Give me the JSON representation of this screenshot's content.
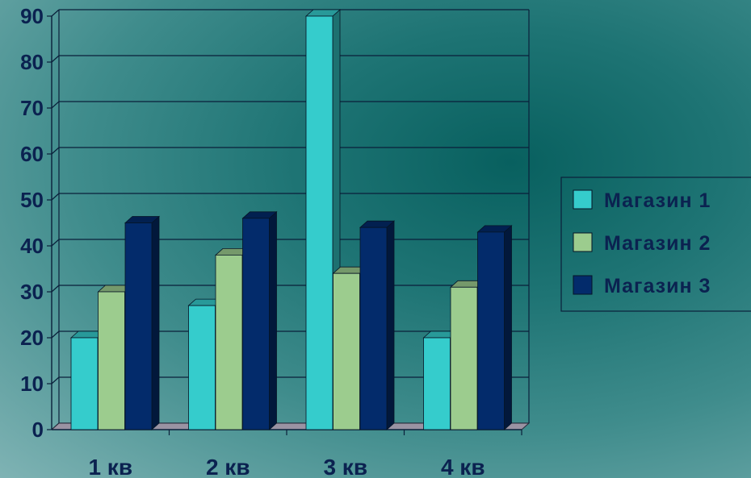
{
  "chart_data": {
    "type": "bar",
    "categories": [
      "1 кв",
      "2 кв",
      "3 кв",
      "4 кв"
    ],
    "series": [
      {
        "name": "Магазин 1",
        "values": [
          20,
          27,
          90,
          20
        ],
        "color": "#35cccc"
      },
      {
        "name": "Магазин 2",
        "values": [
          30,
          38,
          34,
          31
        ],
        "color": "#9ccc8e"
      },
      {
        "name": "Магазин 3",
        "values": [
          45,
          46,
          44,
          43
        ],
        "color": "#032b6b"
      }
    ],
    "ylim": [
      0,
      90
    ],
    "yticks": [
      "0",
      "10",
      "20",
      "30",
      "40",
      "50",
      "60",
      "70",
      "80",
      "90"
    ],
    "title": "",
    "xlabel": "",
    "ylabel": "",
    "grid": true,
    "legend_position": "right"
  }
}
